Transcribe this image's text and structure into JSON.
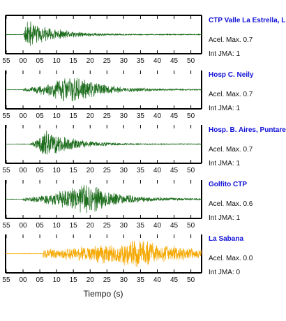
{
  "chart_data": {
    "type": "line",
    "description_units": "seismograms, time axis in seconds past the minute",
    "xlabel": "Tiempo (s)",
    "x_ticks": [
      "55",
      "00",
      "05",
      "10",
      "15",
      "20",
      "25",
      "30",
      "35",
      "40",
      "45",
      "50"
    ],
    "series": [
      {
        "name": "CTP Valle La Estrella, L",
        "pga_label": "Acel. Max. 0.7",
        "jma_label": "Int JMA: 1",
        "color": "#1e6e1e",
        "onset_s": 0,
        "peak_s": 1,
        "amp": 0.85,
        "decay_s": 9,
        "base": 0.04,
        "fullBox": true,
        "seed": 11
      },
      {
        "name": "Hosp C. Neily",
        "pga_label": "Acel. Max. 0.7",
        "jma_label": "Int JMA: 1",
        "color": "#1e6e1e",
        "onset_s": 0,
        "peak_s": 14,
        "amp": 0.9,
        "decay_s": 9,
        "base": 0.1,
        "fullBox": false,
        "seed": 23
      },
      {
        "name": "Hosp. B. Aires, Puntare",
        "pga_label": "Acel. Max. 0.7",
        "jma_label": "Int JMA: 1",
        "color": "#1e6e1e",
        "onset_s": 2,
        "peak_s": 6.5,
        "amp": 0.9,
        "decay_s": 8,
        "base": 0.06,
        "fullBox": false,
        "seed": 37
      },
      {
        "name": "Golfito CTP",
        "pga_label": "Acel. Max. 0.6",
        "jma_label": "Int JMA: 1",
        "color": "#1e6e1e",
        "onset_s": 0,
        "peak_s": 19,
        "amp": 0.9,
        "decay_s": 9,
        "base": 0.12,
        "fullBox": false,
        "seed": 41
      },
      {
        "name": "La Sabana",
        "pga_label": "Acel. Max. 0.0",
        "jma_label": "Int JMA: 0",
        "color": "#f5a800",
        "onset_s": 6,
        "peak_s": 33,
        "amp": 0.85,
        "decay_s": 14,
        "base": 0.3,
        "fullBox": false,
        "seed": 53
      }
    ]
  }
}
